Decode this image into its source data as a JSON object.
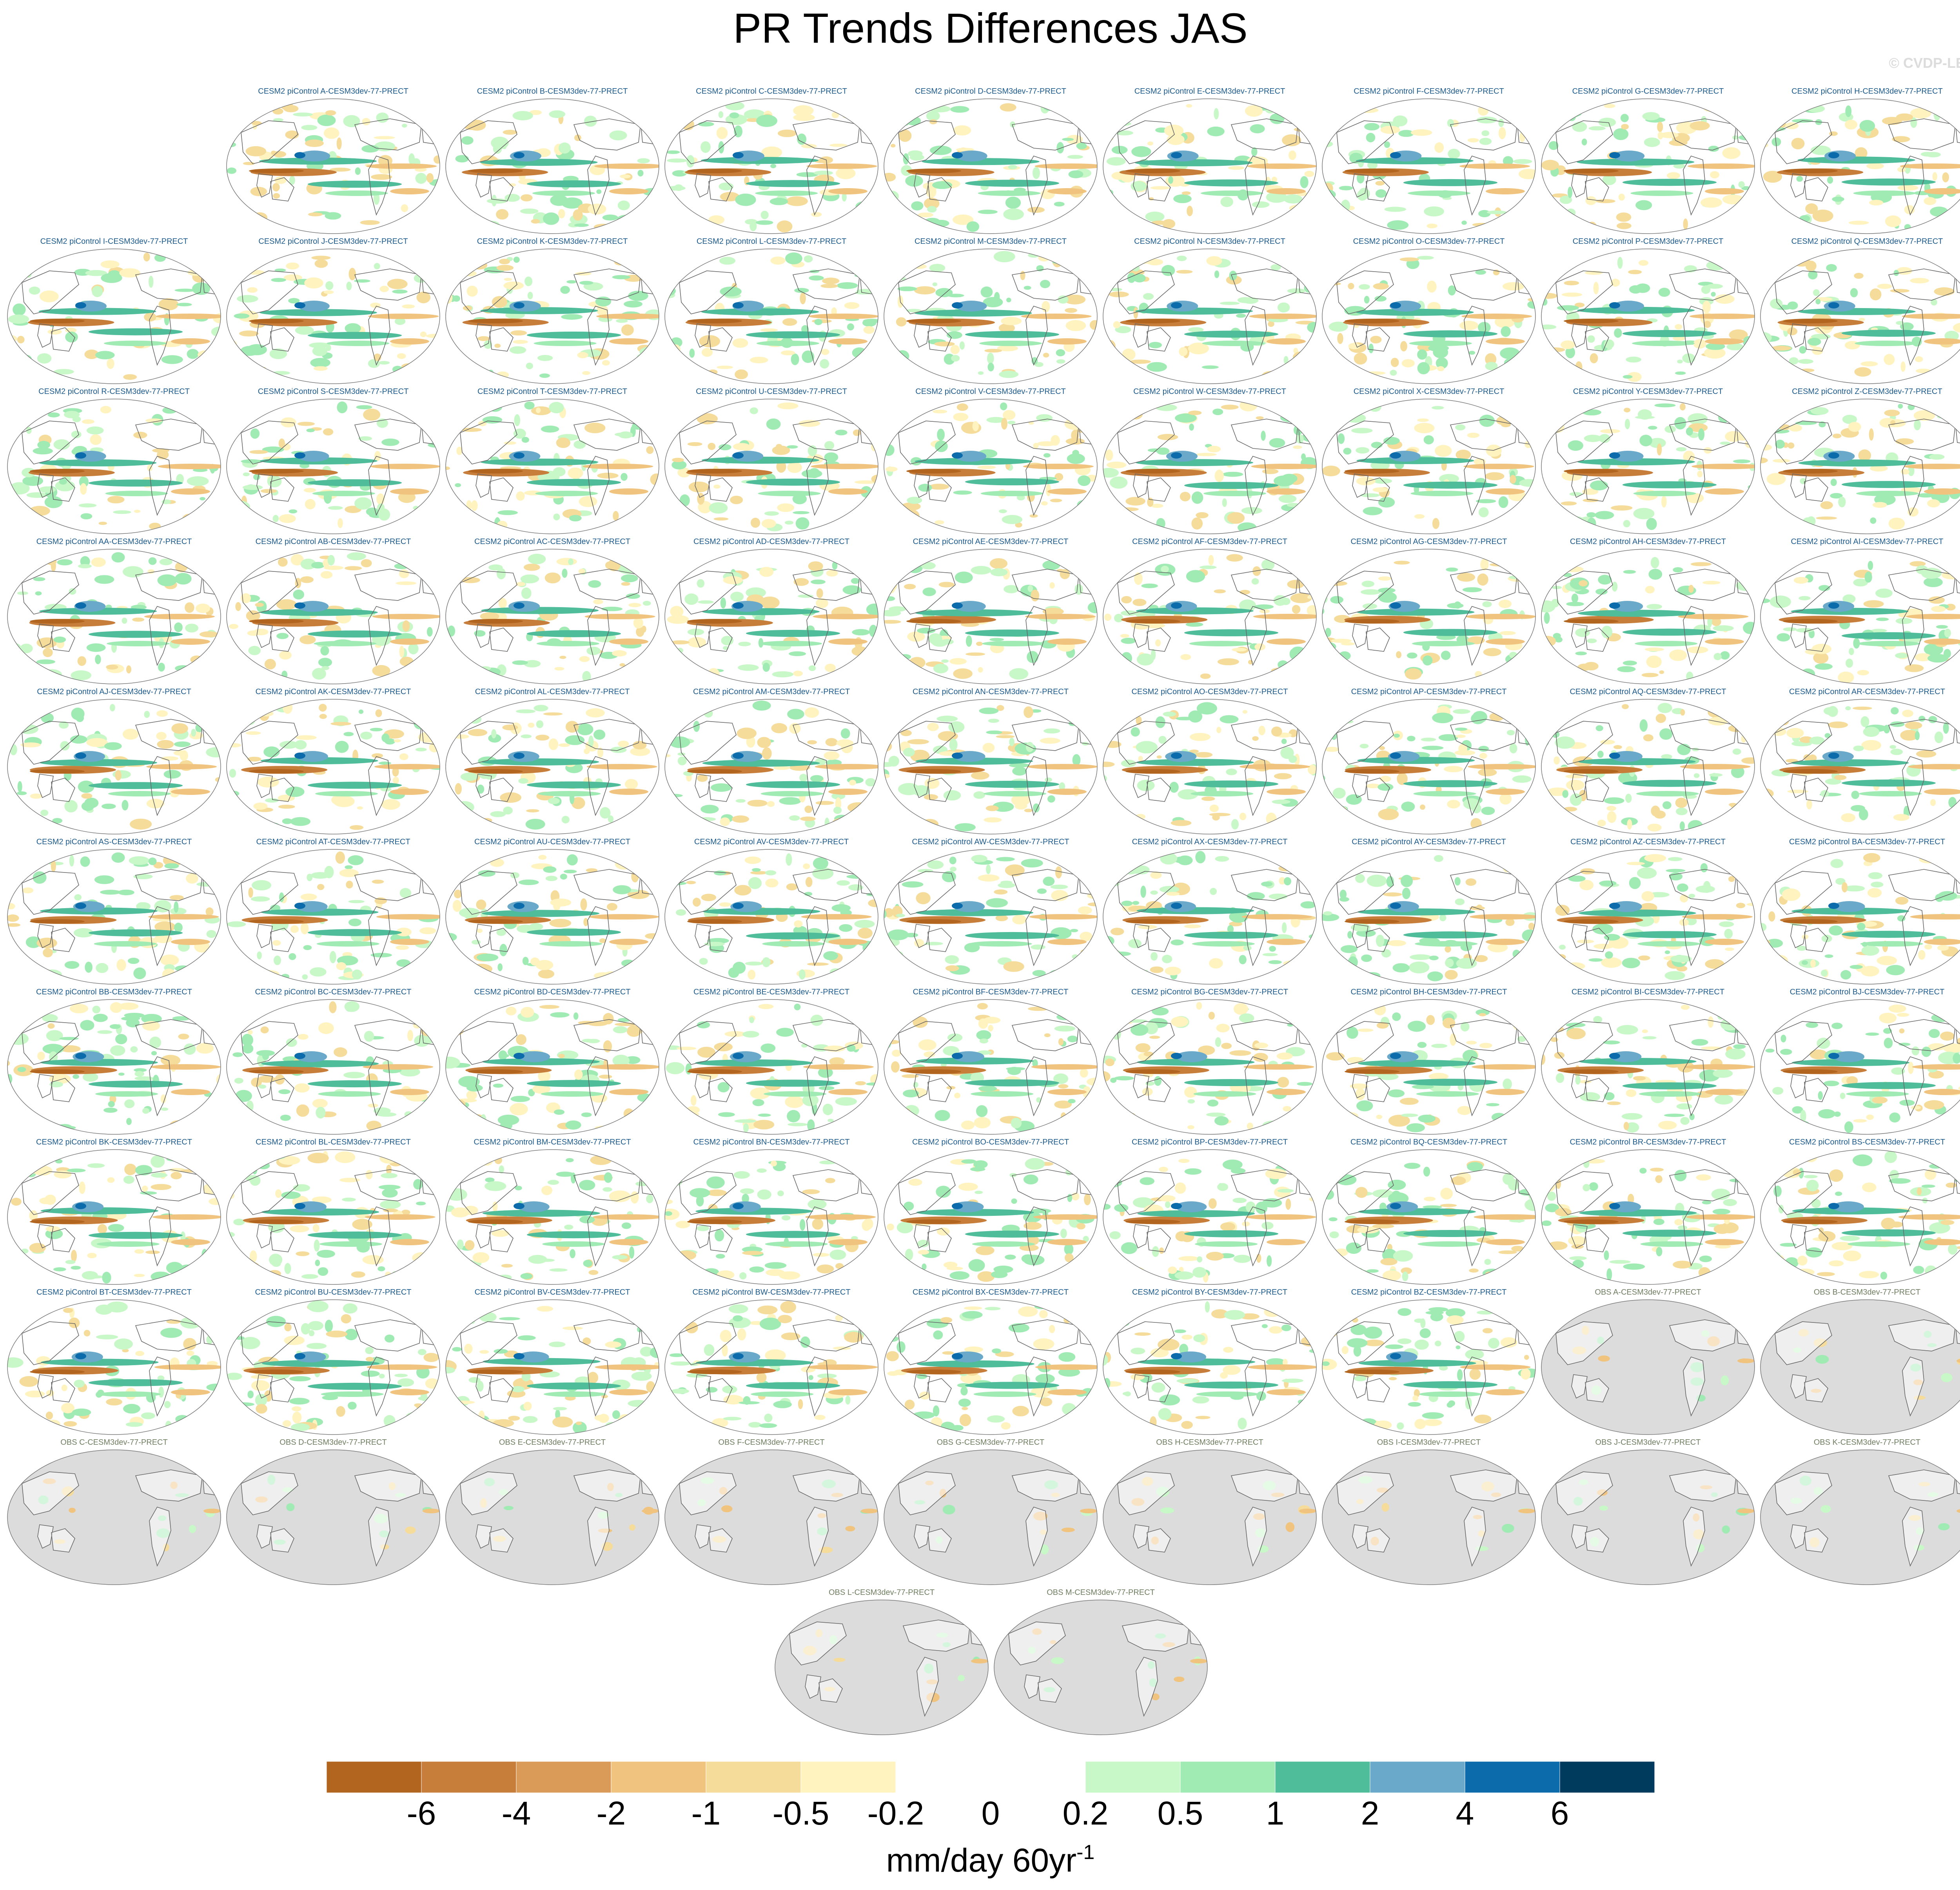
{
  "title": "PR Trends Differences JAS",
  "watermark": "© CVDP-LE",
  "colors": {
    "model_title": "#1d5a8c",
    "obs_title": "#6f7d60",
    "land_mask": "#dcdcdc",
    "coast": "#666666"
  },
  "colorbar": {
    "levels": [
      "-6",
      "-4",
      "-2",
      "-1",
      "-0.5",
      "-0.2",
      "0",
      "0.2",
      "0.5",
      "1",
      "2",
      "4",
      "6"
    ],
    "colors": [
      "#b2651f",
      "#c87e3b",
      "#db9b58",
      "#f0c47f",
      "#f5dc9b",
      "#fff3c0",
      "#ffffff",
      "#ffffff",
      "#c8f7c8",
      "#a0eab4",
      "#4fbc9a",
      "#6aa9c9",
      "#0c6cab",
      "#003a5c"
    ],
    "units_base": "mm/day 60yr",
    "units_exp": "-1"
  },
  "chart_data": {
    "type": "map",
    "title": "PR Trends Differences JAS",
    "units": "mm/day 60yr-1",
    "panels": [
      "CESM2 piControl A-CESM3dev-77-PRECT",
      "CESM2 piControl B-CESM3dev-77-PRECT",
      "CESM2 piControl C-CESM3dev-77-PRECT",
      "CESM2 piControl D-CESM3dev-77-PRECT",
      "CESM2 piControl E-CESM3dev-77-PRECT",
      "CESM2 piControl F-CESM3dev-77-PRECT",
      "CESM2 piControl G-CESM3dev-77-PRECT",
      "CESM2 piControl H-CESM3dev-77-PRECT",
      "CESM2 piControl I-CESM3dev-77-PRECT",
      "CESM2 piControl J-CESM3dev-77-PRECT",
      "CESM2 piControl K-CESM3dev-77-PRECT",
      "CESM2 piControl L-CESM3dev-77-PRECT",
      "CESM2 piControl M-CESM3dev-77-PRECT",
      "CESM2 piControl N-CESM3dev-77-PRECT",
      "CESM2 piControl O-CESM3dev-77-PRECT",
      "CESM2 piControl P-CESM3dev-77-PRECT",
      "CESM2 piControl Q-CESM3dev-77-PRECT",
      "CESM2 piControl R-CESM3dev-77-PRECT",
      "CESM2 piControl S-CESM3dev-77-PRECT",
      "CESM2 piControl T-CESM3dev-77-PRECT",
      "CESM2 piControl U-CESM3dev-77-PRECT",
      "CESM2 piControl V-CESM3dev-77-PRECT",
      "CESM2 piControl W-CESM3dev-77-PRECT",
      "CESM2 piControl X-CESM3dev-77-PRECT",
      "CESM2 piControl Y-CESM3dev-77-PRECT",
      "CESM2 piControl Z-CESM3dev-77-PRECT",
      "CESM2 piControl AA-CESM3dev-77-PRECT",
      "CESM2 piControl AB-CESM3dev-77-PRECT",
      "CESM2 piControl AC-CESM3dev-77-PRECT",
      "CESM2 piControl AD-CESM3dev-77-PRECT",
      "CESM2 piControl AE-CESM3dev-77-PRECT",
      "CESM2 piControl AF-CESM3dev-77-PRECT",
      "CESM2 piControl AG-CESM3dev-77-PRECT",
      "CESM2 piControl AH-CESM3dev-77-PRECT",
      "CESM2 piControl AI-CESM3dev-77-PRECT",
      "CESM2 piControl AJ-CESM3dev-77-PRECT",
      "CESM2 piControl AK-CESM3dev-77-PRECT",
      "CESM2 piControl AL-CESM3dev-77-PRECT",
      "CESM2 piControl AM-CESM3dev-77-PRECT",
      "CESM2 piControl AN-CESM3dev-77-PRECT",
      "CESM2 piControl AO-CESM3dev-77-PRECT",
      "CESM2 piControl AP-CESM3dev-77-PRECT",
      "CESM2 piControl AQ-CESM3dev-77-PRECT",
      "CESM2 piControl AR-CESM3dev-77-PRECT",
      "CESM2 piControl AS-CESM3dev-77-PRECT",
      "CESM2 piControl AT-CESM3dev-77-PRECT",
      "CESM2 piControl AU-CESM3dev-77-PRECT",
      "CESM2 piControl AV-CESM3dev-77-PRECT",
      "CESM2 piControl AW-CESM3dev-77-PRECT",
      "CESM2 piControl AX-CESM3dev-77-PRECT",
      "CESM2 piControl AY-CESM3dev-77-PRECT",
      "CESM2 piControl AZ-CESM3dev-77-PRECT",
      "CESM2 piControl BA-CESM3dev-77-PRECT",
      "CESM2 piControl BB-CESM3dev-77-PRECT",
      "CESM2 piControl BC-CESM3dev-77-PRECT",
      "CESM2 piControl BD-CESM3dev-77-PRECT",
      "CESM2 piControl BE-CESM3dev-77-PRECT",
      "CESM2 piControl BF-CESM3dev-77-PRECT",
      "CESM2 piControl BG-CESM3dev-77-PRECT",
      "CESM2 piControl BH-CESM3dev-77-PRECT",
      "CESM2 piControl BI-CESM3dev-77-PRECT",
      "CESM2 piControl BJ-CESM3dev-77-PRECT",
      "CESM2 piControl BK-CESM3dev-77-PRECT",
      "CESM2 piControl BL-CESM3dev-77-PRECT",
      "CESM2 piControl BM-CESM3dev-77-PRECT",
      "CESM2 piControl BN-CESM3dev-77-PRECT",
      "CESM2 piControl BO-CESM3dev-77-PRECT",
      "CESM2 piControl BP-CESM3dev-77-PRECT",
      "CESM2 piControl BQ-CESM3dev-77-PRECT",
      "CESM2 piControl BR-CESM3dev-77-PRECT",
      "CESM2 piControl BS-CESM3dev-77-PRECT",
      "CESM2 piControl BT-CESM3dev-77-PRECT",
      "CESM2 piControl BU-CESM3dev-77-PRECT",
      "CESM2 piControl BV-CESM3dev-77-PRECT",
      "CESM2 piControl BW-CESM3dev-77-PRECT",
      "CESM2 piControl BX-CESM3dev-77-PRECT",
      "CESM2 piControl BY-CESM3dev-77-PRECT",
      "CESM2 piControl BZ-CESM3dev-77-PRECT",
      "OBS A-CESM3dev-77-PRECT",
      "OBS B-CESM3dev-77-PRECT",
      "OBS C-CESM3dev-77-PRECT",
      "OBS D-CESM3dev-77-PRECT",
      "OBS E-CESM3dev-77-PRECT",
      "OBS F-CESM3dev-77-PRECT",
      "OBS G-CESM3dev-77-PRECT",
      "OBS H-CESM3dev-77-PRECT",
      "OBS I-CESM3dev-77-PRECT",
      "OBS J-CESM3dev-77-PRECT",
      "OBS K-CESM3dev-77-PRECT",
      "OBS L-CESM3dev-77-PRECT",
      "OBS M-CESM3dev-77-PRECT"
    ]
  }
}
